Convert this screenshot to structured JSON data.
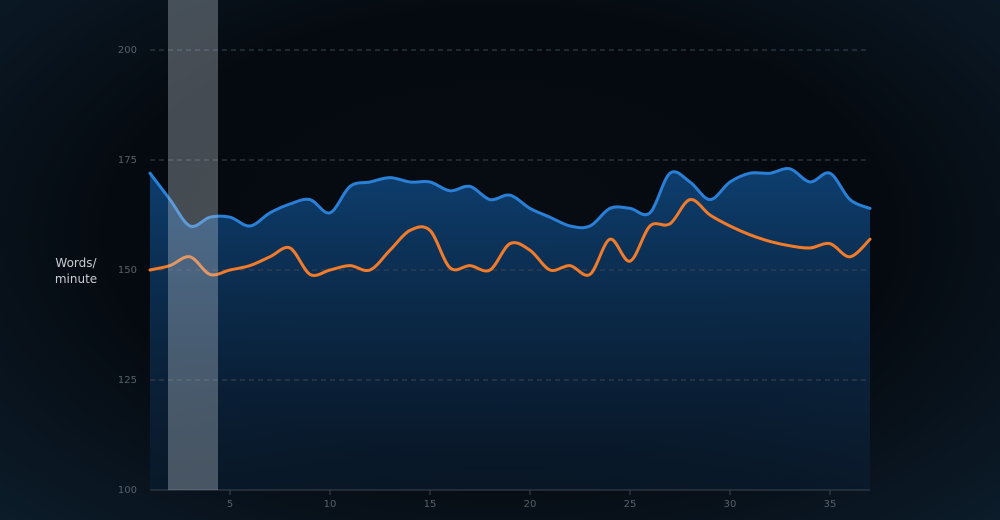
{
  "chart_data": {
    "type": "line",
    "y_label": "Words/\nminute",
    "x": [
      1,
      2,
      3,
      4,
      5,
      6,
      7,
      8,
      9,
      10,
      11,
      12,
      13,
      14,
      15,
      16,
      17,
      18,
      19,
      20,
      21,
      22,
      23,
      24,
      25,
      26,
      27,
      28,
      29,
      30,
      31,
      32,
      33,
      34,
      35,
      36,
      37
    ],
    "series": [
      {
        "color": "#2a7fd6",
        "area": true,
        "values": [
          172,
          166,
          160,
          162,
          162,
          160,
          163,
          165,
          166,
          163,
          169,
          170,
          171,
          170,
          170,
          168,
          169,
          166,
          167,
          164,
          162,
          160,
          160,
          164,
          164,
          163,
          172,
          170,
          166,
          170,
          172,
          172,
          173,
          170,
          172,
          166,
          164
        ]
      },
      {
        "color": "#f07b2a",
        "values": [
          150,
          151,
          153,
          149,
          150,
          151,
          153,
          155,
          149,
          150,
          151,
          150,
          154.5,
          159,
          159,
          150.5,
          151,
          150,
          156,
          154.5,
          150,
          151,
          149,
          157,
          152,
          160,
          160.5,
          166,
          162.5,
          160,
          158,
          156.5,
          155.5,
          155,
          156,
          153,
          157
        ]
      }
    ],
    "xlim": [
      1,
      37
    ],
    "xticks": [
      5,
      10,
      15,
      20,
      25,
      30,
      35
    ],
    "ylim": [
      100,
      200
    ],
    "yticks": [
      100,
      125,
      150,
      175,
      200
    ],
    "grid": true,
    "highlight_x": [
      1.9,
      4.4
    ]
  }
}
